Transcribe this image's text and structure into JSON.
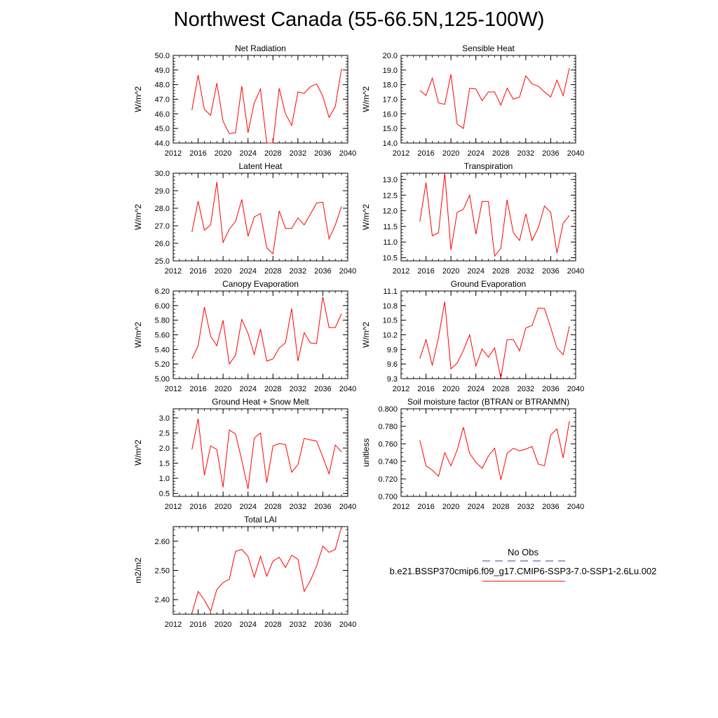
{
  "title": "Northwest Canada (55-66.5N,125-100W)",
  "legend": {
    "obs_label": "No Obs",
    "model_label": "b.e21.BSSP370cmip6.f09_g17.CMIP6-SSP3-7.0-SSP1-2.6Lu.002",
    "obs_color": "#3c3ca0",
    "model_color": "#ff0000"
  },
  "chart_data": [
    {
      "type": "line",
      "title": "Net Radiation",
      "ylabel": "W/m^2",
      "xlim": [
        2012,
        2040
      ],
      "ylim": [
        44.0,
        50.0
      ],
      "xticks": [
        2012,
        2016,
        2020,
        2024,
        2028,
        2032,
        2036,
        2040
      ],
      "yticks": [
        44.0,
        45.0,
        46.0,
        47.0,
        48.0,
        49.0,
        50.0
      ],
      "ydecimals": 1,
      "ytick_minor": 0.2,
      "series": [
        {
          "color": "#ff0000",
          "x": [
            2015,
            2016,
            2017,
            2018,
            2019,
            2020,
            2021,
            2022,
            2023,
            2024,
            2025,
            2026,
            2027,
            2028,
            2029,
            2030,
            2031,
            2032,
            2033,
            2034,
            2035,
            2036,
            2037,
            2038,
            2039
          ],
          "y": [
            46.25,
            48.65,
            46.3,
            45.9,
            48.1,
            45.5,
            44.65,
            44.7,
            47.9,
            44.7,
            46.75,
            47.7,
            44.0,
            44.0,
            47.75,
            46.0,
            45.2,
            47.5,
            47.4,
            47.85,
            48.05,
            47.2,
            45.75,
            46.5,
            49.1
          ]
        }
      ]
    },
    {
      "type": "line",
      "title": "Sensible Heat",
      "ylabel": "W/m^2",
      "xlim": [
        2012,
        2040
      ],
      "ylim": [
        14.0,
        20.0
      ],
      "xticks": [
        2012,
        2016,
        2020,
        2024,
        2028,
        2032,
        2036,
        2040
      ],
      "yticks": [
        14.0,
        15.0,
        16.0,
        17.0,
        18.0,
        19.0,
        20.0
      ],
      "ydecimals": 1,
      "ytick_minor": 0.2,
      "series": [
        {
          "color": "#ff0000",
          "x": [
            2015,
            2016,
            2017,
            2018,
            2019,
            2020,
            2021,
            2022,
            2023,
            2024,
            2025,
            2026,
            2027,
            2028,
            2029,
            2030,
            2031,
            2032,
            2033,
            2034,
            2035,
            2036,
            2037,
            2038,
            2039
          ],
          "y": [
            17.6,
            17.25,
            18.45,
            16.75,
            16.65,
            18.7,
            15.3,
            15.0,
            17.75,
            17.7,
            16.9,
            17.5,
            17.5,
            16.6,
            17.75,
            17.0,
            17.15,
            18.6,
            18.05,
            17.9,
            17.5,
            17.15,
            18.3,
            17.25,
            19.15
          ]
        }
      ]
    },
    {
      "type": "line",
      "title": "Latent Heat",
      "ylabel": "W/m^2",
      "xlim": [
        2012,
        2040
      ],
      "ylim": [
        25.0,
        30.0
      ],
      "xticks": [
        2012,
        2016,
        2020,
        2024,
        2028,
        2032,
        2036,
        2040
      ],
      "yticks": [
        25.0,
        26.0,
        27.0,
        28.0,
        29.0,
        30.0
      ],
      "ydecimals": 1,
      "ytick_minor": 0.2,
      "series": [
        {
          "color": "#ff0000",
          "x": [
            2015,
            2016,
            2017,
            2018,
            2019,
            2020,
            2021,
            2022,
            2023,
            2024,
            2025,
            2026,
            2027,
            2028,
            2029,
            2030,
            2031,
            2032,
            2033,
            2034,
            2035,
            2036,
            2037,
            2038,
            2039
          ],
          "y": [
            26.65,
            28.4,
            26.75,
            27.05,
            29.5,
            26.05,
            26.8,
            27.25,
            28.5,
            26.4,
            27.5,
            27.7,
            25.75,
            25.4,
            27.85,
            26.85,
            26.85,
            27.45,
            27.05,
            27.65,
            28.3,
            28.35,
            26.25,
            27.05,
            28.1
          ]
        }
      ]
    },
    {
      "type": "line",
      "title": "Transpiration",
      "ylabel": "W/m^2",
      "xlim": [
        2012,
        2040
      ],
      "ylim": [
        10.4,
        13.2
      ],
      "xticks": [
        2012,
        2016,
        2020,
        2024,
        2028,
        2032,
        2036,
        2040
      ],
      "yticks": [
        10.5,
        11.0,
        11.5,
        12.0,
        12.5,
        13.0
      ],
      "ydecimals": 1,
      "ytick_minor": 0.1,
      "series": [
        {
          "color": "#ff0000",
          "x": [
            2015,
            2016,
            2017,
            2018,
            2019,
            2020,
            2021,
            2022,
            2023,
            2024,
            2025,
            2026,
            2027,
            2028,
            2029,
            2030,
            2031,
            2032,
            2033,
            2034,
            2035,
            2036,
            2037,
            2038,
            2039
          ],
          "y": [
            11.65,
            12.9,
            11.2,
            11.3,
            13.2,
            10.75,
            11.95,
            12.05,
            12.5,
            11.25,
            12.3,
            12.3,
            10.55,
            10.8,
            12.35,
            11.3,
            11.05,
            11.9,
            11.05,
            11.45,
            12.15,
            11.95,
            10.65,
            11.6,
            11.85
          ]
        }
      ]
    },
    {
      "type": "line",
      "title": "Canopy Evaporation",
      "ylabel": "W/m^2",
      "xlim": [
        2012,
        2040
      ],
      "ylim": [
        5.0,
        6.2
      ],
      "xticks": [
        2012,
        2016,
        2020,
        2024,
        2028,
        2032,
        2036,
        2040
      ],
      "yticks": [
        5.0,
        5.2,
        5.4,
        5.6,
        5.8,
        6.0,
        6.2
      ],
      "ydecimals": 2,
      "ytick_minor": 0.05,
      "series": [
        {
          "color": "#ff0000",
          "x": [
            2015,
            2016,
            2017,
            2018,
            2019,
            2020,
            2021,
            2022,
            2023,
            2024,
            2025,
            2026,
            2027,
            2028,
            2029,
            2030,
            2031,
            2032,
            2033,
            2034,
            2035,
            2036,
            2037,
            2038,
            2039
          ],
          "y": [
            5.27,
            5.45,
            5.98,
            5.58,
            5.45,
            5.8,
            5.2,
            5.32,
            5.81,
            5.62,
            5.33,
            5.68,
            5.24,
            5.27,
            5.42,
            5.49,
            5.96,
            5.24,
            5.63,
            5.49,
            5.48,
            6.12,
            5.7,
            5.7,
            5.89
          ]
        }
      ]
    },
    {
      "type": "line",
      "title": "Ground Evaporation",
      "ylabel": "W/m^2",
      "xlim": [
        2012,
        2040
      ],
      "ylim": [
        9.3,
        11.1
      ],
      "xticks": [
        2012,
        2016,
        2020,
        2024,
        2028,
        2032,
        2036,
        2040
      ],
      "yticks": [
        9.3,
        9.6,
        9.9,
        10.2,
        10.5,
        10.8,
        11.1
      ],
      "ydecimals": 1,
      "ytick_minor": 0.1,
      "series": [
        {
          "color": "#ff0000",
          "x": [
            2015,
            2016,
            2017,
            2018,
            2019,
            2020,
            2021,
            2022,
            2023,
            2024,
            2025,
            2026,
            2027,
            2028,
            2029,
            2030,
            2031,
            2032,
            2033,
            2034,
            2035,
            2036,
            2037,
            2038,
            2039
          ],
          "y": [
            9.71,
            10.1,
            9.57,
            10.15,
            10.88,
            9.5,
            9.62,
            9.88,
            10.2,
            9.56,
            9.91,
            9.74,
            9.93,
            9.31,
            10.1,
            10.1,
            9.87,
            10.34,
            10.39,
            10.75,
            10.74,
            10.35,
            9.93,
            9.79,
            10.38
          ]
        }
      ]
    },
    {
      "type": "line",
      "title": "Ground Heat + Snow Melt",
      "ylabel": "W/m^2",
      "xlim": [
        2012,
        2040
      ],
      "ylim": [
        0.4,
        3.3
      ],
      "xticks": [
        2012,
        2016,
        2020,
        2024,
        2028,
        2032,
        2036,
        2040
      ],
      "yticks": [
        0.5,
        1.0,
        1.5,
        2.0,
        2.5,
        3.0
      ],
      "ydecimals": 1,
      "ytick_minor": 0.1,
      "series": [
        {
          "color": "#ff0000",
          "x": [
            2015,
            2016,
            2017,
            2018,
            2019,
            2020,
            2021,
            2022,
            2023,
            2024,
            2025,
            2026,
            2027,
            2028,
            2029,
            2030,
            2031,
            2032,
            2033,
            2034,
            2035,
            2036,
            2037,
            2038,
            2039
          ],
          "y": [
            1.95,
            2.97,
            1.1,
            2.07,
            1.95,
            0.7,
            2.6,
            2.47,
            1.6,
            0.65,
            2.33,
            2.5,
            0.85,
            2.07,
            2.15,
            2.12,
            1.2,
            1.45,
            2.32,
            2.27,
            2.23,
            1.7,
            1.15,
            2.1,
            1.87
          ]
        }
      ]
    },
    {
      "type": "line",
      "title": "Soil moisture factor (BTRAN or BTRANMN)",
      "ylabel": "unitless",
      "xlim": [
        2012,
        2040
      ],
      "ylim": [
        0.7,
        0.8
      ],
      "xticks": [
        2012,
        2016,
        2020,
        2024,
        2028,
        2032,
        2036,
        2040
      ],
      "yticks": [
        0.7,
        0.72,
        0.74,
        0.76,
        0.78,
        0.8
      ],
      "ydecimals": 3,
      "ytick_minor": 0.005,
      "series": [
        {
          "color": "#ff0000",
          "x": [
            2015,
            2016,
            2017,
            2018,
            2019,
            2020,
            2021,
            2022,
            2023,
            2024,
            2025,
            2026,
            2027,
            2028,
            2029,
            2030,
            2031,
            2032,
            2033,
            2034,
            2035,
            2036,
            2037,
            2038,
            2039
          ],
          "y": [
            0.764,
            0.735,
            0.73,
            0.723,
            0.75,
            0.735,
            0.753,
            0.779,
            0.749,
            0.739,
            0.732,
            0.746,
            0.755,
            0.719,
            0.749,
            0.755,
            0.752,
            0.754,
            0.757,
            0.737,
            0.735,
            0.77,
            0.777,
            0.744,
            0.786
          ]
        }
      ]
    },
    {
      "type": "line",
      "title": "Total LAI",
      "ylabel": "m2/m2",
      "xlim": [
        2012,
        2040
      ],
      "ylim": [
        2.35,
        2.65
      ],
      "xticks": [
        2012,
        2016,
        2020,
        2024,
        2028,
        2032,
        2036,
        2040
      ],
      "yticks": [
        2.4,
        2.5,
        2.6
      ],
      "ydecimals": 2,
      "ytick_minor": 0.02,
      "series": [
        {
          "color": "#ff0000",
          "x": [
            2015,
            2016,
            2017,
            2018,
            2019,
            2020,
            2021,
            2022,
            2023,
            2024,
            2025,
            2026,
            2027,
            2028,
            2029,
            2030,
            2031,
            2032,
            2033,
            2034,
            2035,
            2036,
            2037,
            2038,
            2039
          ],
          "y": [
            2.353,
            2.428,
            2.398,
            2.36,
            2.435,
            2.458,
            2.47,
            2.565,
            2.572,
            2.548,
            2.477,
            2.548,
            2.48,
            2.532,
            2.545,
            2.51,
            2.552,
            2.538,
            2.428,
            2.465,
            2.515,
            2.583,
            2.562,
            2.572,
            2.65
          ]
        }
      ]
    }
  ]
}
